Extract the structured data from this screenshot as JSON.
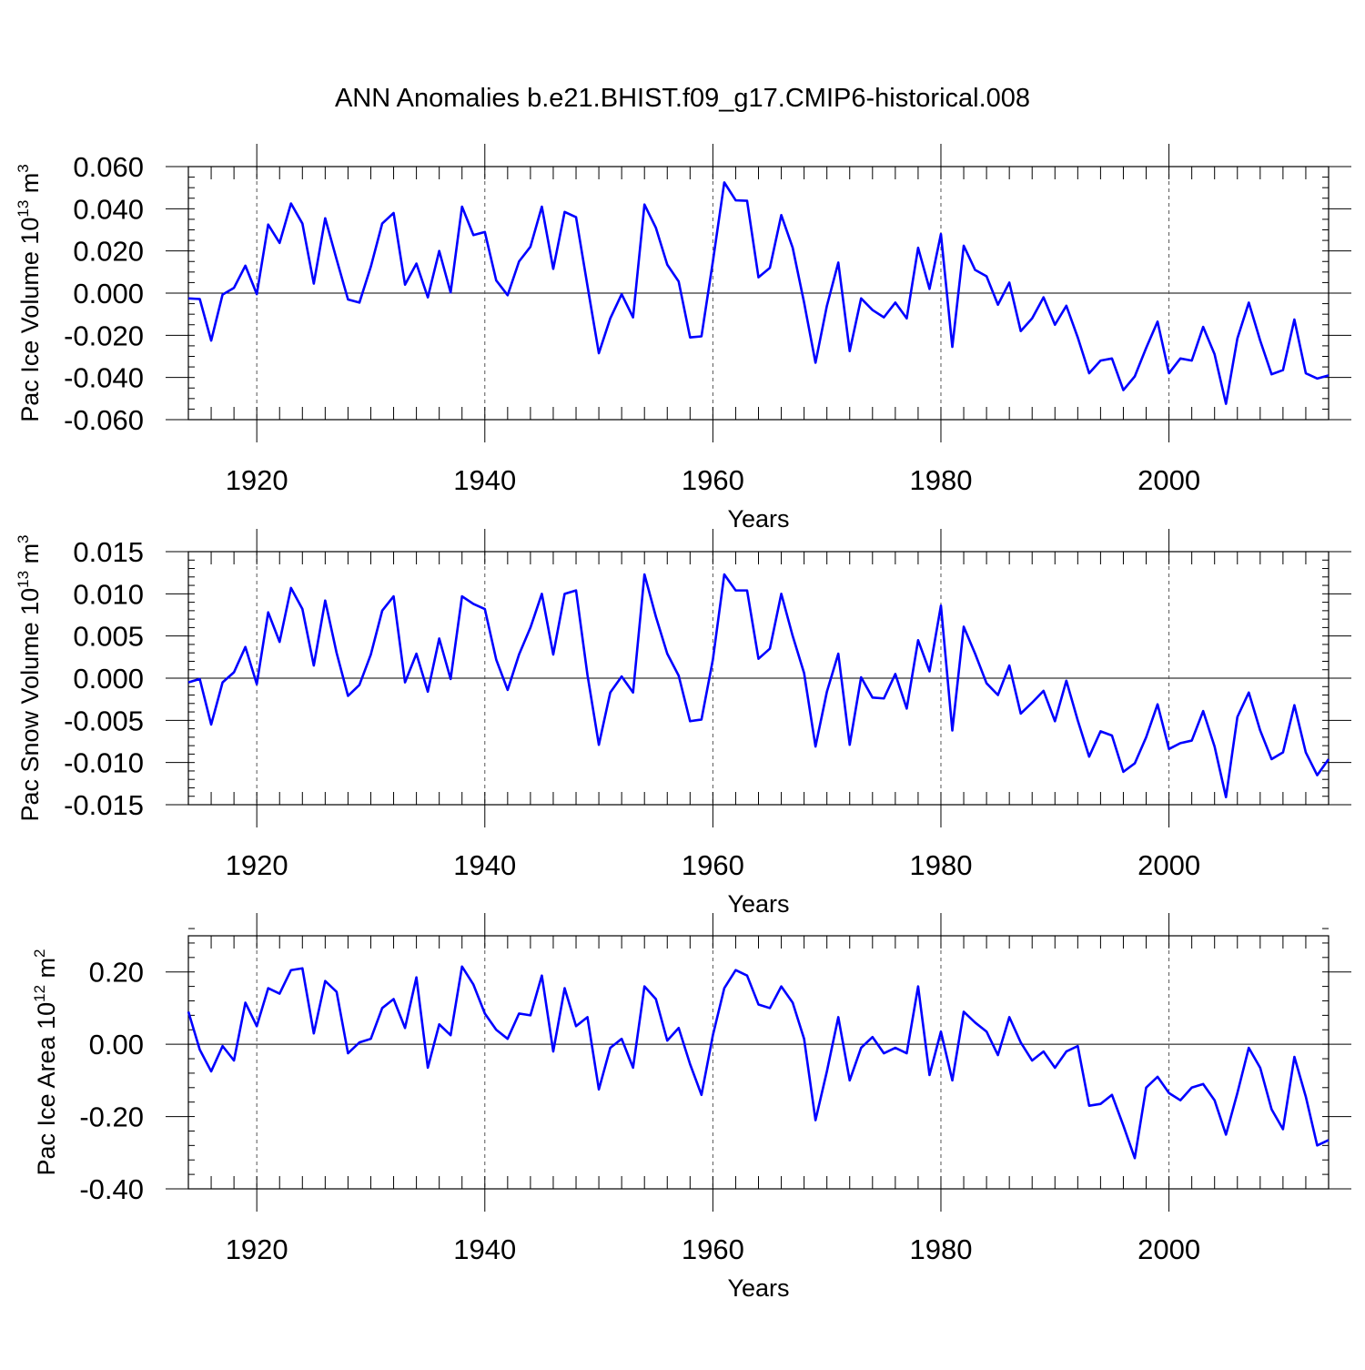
{
  "figure": {
    "title": "ANN Anomalies b.e21.BHIST.f09_g17.CMIP6-historical.008",
    "line_color": "#0000ff"
  },
  "chart_data": [
    {
      "type": "line",
      "title": "",
      "xlabel": "Years",
      "ylabel": "Pac Ice Volume 10",
      "ylabel_exp": "13",
      "ylabel_unit": " m",
      "ylabel_unit_exp": "3",
      "xlim": [
        1914,
        2014
      ],
      "ylim": [
        -0.06,
        0.06
      ],
      "xticks": [
        1920,
        1940,
        1960,
        1980,
        2000
      ],
      "yticks": [
        -0.06,
        -0.04,
        -0.02,
        0.0,
        0.02,
        0.04,
        0.06
      ],
      "ytick_labels": [
        "-0.060",
        "-0.040",
        "-0.020",
        "0.000",
        "0.020",
        "0.040",
        "0.060"
      ],
      "minor_ystep": 0.005,
      "x_start": 1914,
      "values": [
        -0.0025,
        -0.0028,
        -0.0225,
        -0.0007,
        0.0025,
        0.013,
        -0.0005,
        0.0325,
        0.0238,
        0.0425,
        0.033,
        0.0045,
        0.0355,
        0.016,
        -0.003,
        -0.0045,
        0.0125,
        0.033,
        0.038,
        0.004,
        0.014,
        -0.002,
        0.02,
        0.0003,
        0.041,
        0.0275,
        0.029,
        0.006,
        -0.001,
        0.015,
        0.022,
        0.041,
        0.0115,
        0.0385,
        0.036,
        0.0035,
        -0.0285,
        -0.012,
        -0.0005,
        -0.0115,
        0.042,
        0.031,
        0.0135,
        0.0055,
        -0.021,
        -0.0205,
        0.015,
        0.0525,
        0.044,
        0.0438,
        0.0075,
        0.012,
        0.037,
        0.0215,
        -0.0045,
        -0.033,
        -0.006,
        0.0145,
        -0.0275,
        -0.0025,
        -0.008,
        -0.0115,
        -0.0045,
        -0.012,
        0.0215,
        0.002,
        0.028,
        -0.0255,
        0.0225,
        0.011,
        0.008,
        -0.0055,
        0.005,
        -0.018,
        -0.012,
        -0.002,
        -0.015,
        -0.006,
        -0.021,
        -0.038,
        -0.032,
        -0.031,
        -0.046,
        -0.0395,
        -0.026,
        -0.0135,
        -0.038,
        -0.031,
        -0.032,
        -0.016,
        -0.029,
        -0.0525,
        -0.0215,
        -0.0045,
        -0.0225,
        -0.0385,
        -0.0365,
        -0.0125,
        -0.038,
        -0.0405,
        -0.039
      ]
    },
    {
      "type": "line",
      "title": "",
      "xlabel": "Years",
      "ylabel": "Pac Snow Volume 10",
      "ylabel_exp": "13",
      "ylabel_unit": " m",
      "ylabel_unit_exp": "3",
      "xlim": [
        1914,
        2014
      ],
      "ylim": [
        -0.015,
        0.015
      ],
      "xticks": [
        1920,
        1940,
        1960,
        1980,
        2000
      ],
      "yticks": [
        -0.015,
        -0.01,
        -0.005,
        0.0,
        0.005,
        0.01,
        0.015
      ],
      "ytick_labels": [
        "-0.015",
        "-0.010",
        "-0.005",
        "0.000",
        "0.005",
        "0.010",
        "0.015"
      ],
      "minor_ystep": 0.001,
      "x_start": 1914,
      "values": [
        -0.0005,
        -0.0001,
        -0.0055,
        -0.0005,
        0.0007,
        0.0037,
        -0.0007,
        0.0078,
        0.0043,
        0.0107,
        0.0082,
        0.0015,
        0.0092,
        0.003,
        -0.0021,
        -0.0008,
        0.0028,
        0.008,
        0.0097,
        -0.0005,
        0.0029,
        -0.0016,
        0.0047,
        -0.0001,
        0.0097,
        0.0088,
        0.0082,
        0.0022,
        -0.0014,
        0.0028,
        0.006,
        0.01,
        0.0028,
        0.01,
        0.0104,
        0.0004,
        -0.0079,
        -0.0017,
        0.0002,
        -0.0017,
        0.0123,
        0.0073,
        0.0029,
        0.0003,
        -0.0051,
        -0.0049,
        0.0022,
        0.0123,
        0.0104,
        0.0104,
        0.0023,
        0.0035,
        0.01,
        0.005,
        0.0006,
        -0.0081,
        -0.0016,
        0.0029,
        -0.0079,
        0.0001,
        -0.0023,
        -0.0024,
        0.0005,
        -0.0036,
        0.0045,
        0.0008,
        0.0086,
        -0.0062,
        0.0061,
        0.0029,
        -0.0006,
        -0.002,
        0.0015,
        -0.0042,
        -0.0029,
        -0.0015,
        -0.0051,
        -0.0003,
        -0.005,
        -0.0093,
        -0.0063,
        -0.0068,
        -0.0111,
        -0.0101,
        -0.007,
        -0.0031,
        -0.0084,
        -0.0077,
        -0.0074,
        -0.0039,
        -0.0081,
        -0.0141,
        -0.0046,
        -0.0017,
        -0.0062,
        -0.0096,
        -0.0088,
        -0.0032,
        -0.0088,
        -0.0115,
        -0.0096
      ]
    },
    {
      "type": "line",
      "title": "",
      "xlabel": "Years",
      "ylabel": "Pac Ice Area 10",
      "ylabel_exp": "12",
      "ylabel_unit": " m",
      "ylabel_unit_exp": "2",
      "xlim": [
        1914,
        2014
      ],
      "ylim": [
        -0.4,
        0.3
      ],
      "xticks": [
        1920,
        1940,
        1960,
        1980,
        2000
      ],
      "yticks": [
        -0.4,
        -0.2,
        0.0,
        0.2
      ],
      "ytick_labels": [
        "-0.40",
        "-0.20",
        "0.00",
        "0.20"
      ],
      "minor_ystep": 0.04,
      "x_start": 1914,
      "values": [
        0.09,
        -0.015,
        -0.075,
        -0.005,
        -0.045,
        0.115,
        0.05,
        0.155,
        0.14,
        0.205,
        0.21,
        0.03,
        0.175,
        0.145,
        -0.025,
        0.005,
        0.015,
        0.1,
        0.125,
        0.045,
        0.185,
        -0.065,
        0.055,
        0.025,
        0.215,
        0.165,
        0.085,
        0.04,
        0.015,
        0.085,
        0.08,
        0.19,
        -0.02,
        0.155,
        0.05,
        0.075,
        -0.125,
        -0.01,
        0.015,
        -0.065,
        0.16,
        0.125,
        0.01,
        0.045,
        -0.055,
        -0.14,
        0.025,
        0.155,
        0.205,
        0.19,
        0.11,
        0.1,
        0.16,
        0.115,
        0.015,
        -0.21,
        -0.075,
        0.075,
        -0.1,
        -0.01,
        0.02,
        -0.025,
        -0.01,
        -0.025,
        0.16,
        -0.085,
        0.035,
        -0.1,
        0.09,
        0.06,
        0.035,
        -0.03,
        0.075,
        0.005,
        -0.045,
        -0.02,
        -0.065,
        -0.02,
        -0.005,
        -0.17,
        -0.165,
        -0.14,
        -0.225,
        -0.315,
        -0.12,
        -0.09,
        -0.135,
        -0.155,
        -0.12,
        -0.11,
        -0.155,
        -0.25,
        -0.135,
        -0.01,
        -0.065,
        -0.18,
        -0.235,
        -0.035,
        -0.145,
        -0.28,
        -0.265
      ]
    }
  ]
}
